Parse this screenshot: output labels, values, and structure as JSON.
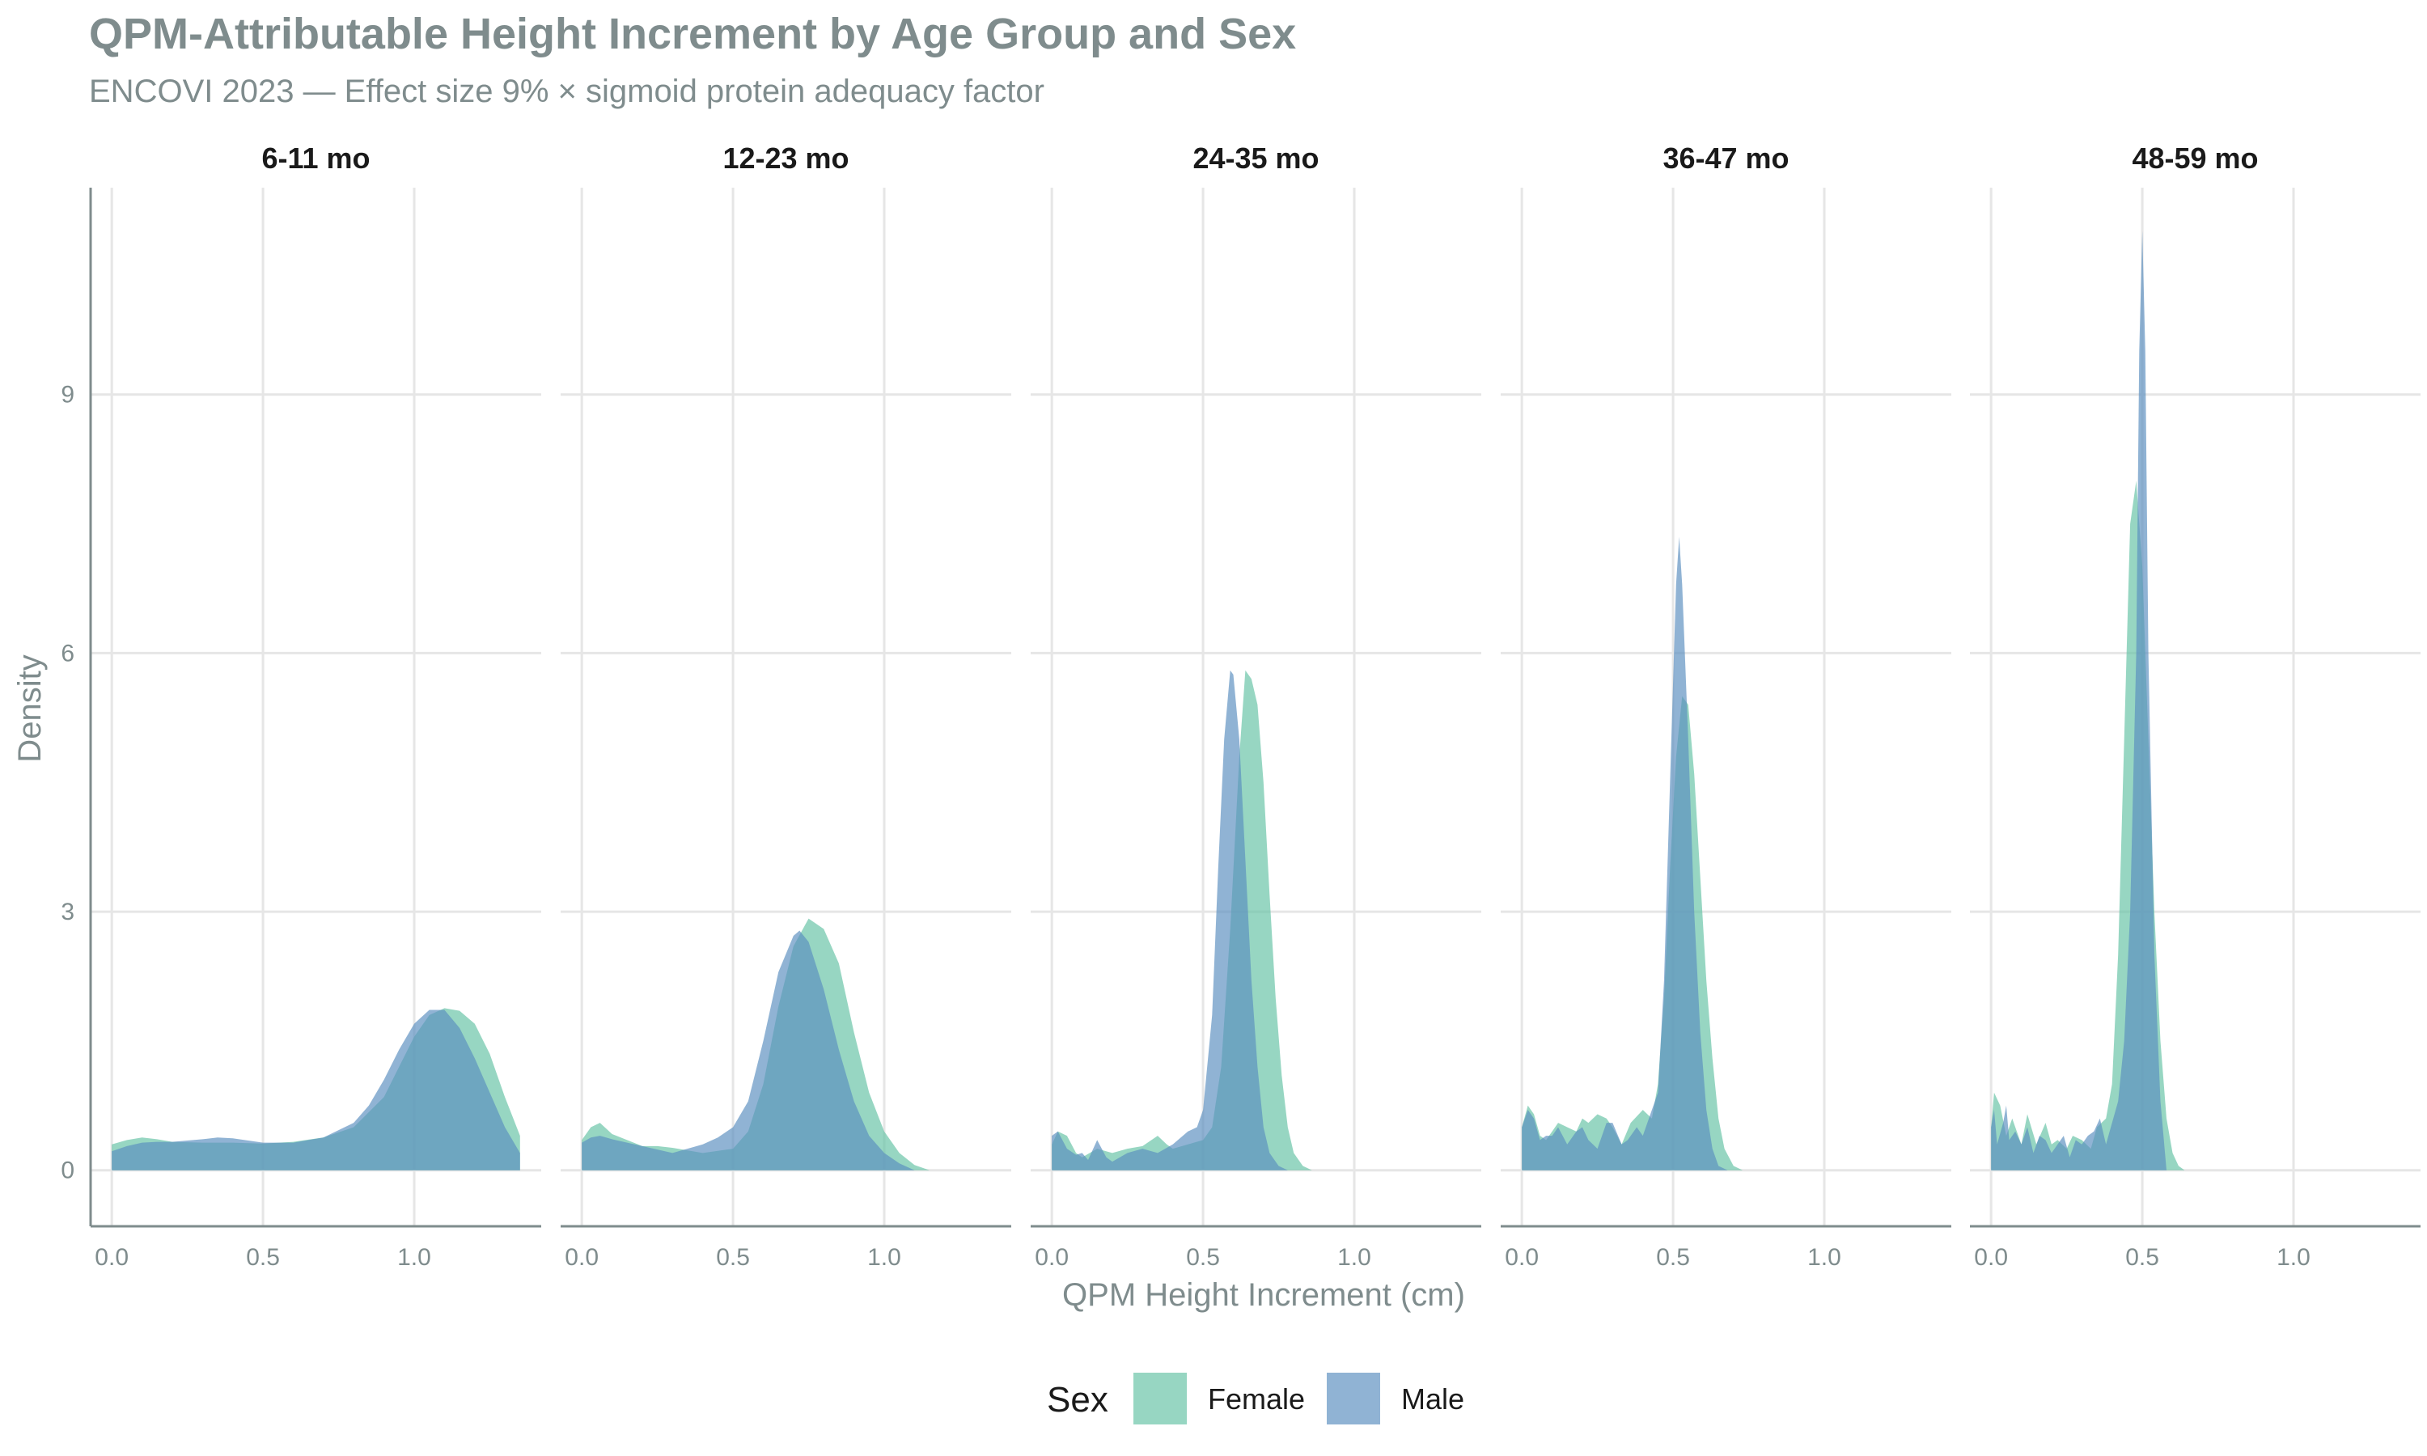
{
  "colors": {
    "Female": "#66c2a5",
    "Male": "#5b8fbf",
    "axis": "#7f8c8d",
    "grid": "#e6e6e6"
  },
  "chart_data": {
    "type": "area",
    "title": "QPM-Attributable Height Increment by Age Group and Sex",
    "subtitle": "ENCOVI 2023 — Effect size 9% × sigmoid protein adequacy factor",
    "xlabel": "QPM Height Increment (cm)",
    "ylabel": "Density",
    "xlim": [
      -0.07,
      1.42
    ],
    "ylim": [
      -0.65,
      11.4
    ],
    "x_ticks": [
      0.0,
      0.5,
      1.0
    ],
    "x_tick_labels": [
      "0.0",
      "0.5",
      "1.0"
    ],
    "y_ticks": [
      0,
      3,
      6,
      9
    ],
    "y_tick_labels": [
      "0",
      "3",
      "6",
      "9"
    ],
    "grid": true,
    "legend": {
      "title": "Sex",
      "position": "bottom",
      "entries": [
        "Female",
        "Male"
      ]
    },
    "panels": [
      {
        "label": "6-11 mo",
        "series": [
          {
            "name": "Female",
            "x": [
              0.0,
              0.05,
              0.1,
              0.15,
              0.2,
              0.3,
              0.4,
              0.5,
              0.6,
              0.7,
              0.8,
              0.9,
              0.95,
              1.0,
              1.05,
              1.1,
              1.15,
              1.2,
              1.25,
              1.3,
              1.35
            ],
            "y": [
              0.3,
              0.35,
              0.38,
              0.36,
              0.33,
              0.32,
              0.32,
              0.31,
              0.33,
              0.38,
              0.5,
              0.85,
              1.2,
              1.55,
              1.8,
              1.88,
              1.85,
              1.7,
              1.35,
              0.85,
              0.4
            ]
          },
          {
            "name": "Male",
            "x": [
              0.0,
              0.05,
              0.1,
              0.15,
              0.2,
              0.3,
              0.35,
              0.4,
              0.5,
              0.6,
              0.7,
              0.8,
              0.85,
              0.9,
              0.95,
              1.0,
              1.05,
              1.1,
              1.15,
              1.2,
              1.25,
              1.3,
              1.35
            ],
            "y": [
              0.22,
              0.28,
              0.32,
              0.33,
              0.33,
              0.36,
              0.38,
              0.37,
              0.32,
              0.32,
              0.38,
              0.55,
              0.75,
              1.05,
              1.4,
              1.7,
              1.86,
              1.86,
              1.65,
              1.3,
              0.9,
              0.5,
              0.2
            ]
          }
        ]
      },
      {
        "label": "12-23 mo",
        "series": [
          {
            "name": "Female",
            "x": [
              0.0,
              0.03,
              0.06,
              0.1,
              0.15,
              0.2,
              0.25,
              0.3,
              0.4,
              0.5,
              0.55,
              0.6,
              0.65,
              0.7,
              0.75,
              0.8,
              0.85,
              0.9,
              0.95,
              1.0,
              1.05,
              1.1,
              1.15
            ],
            "y": [
              0.35,
              0.5,
              0.55,
              0.42,
              0.35,
              0.28,
              0.28,
              0.26,
              0.2,
              0.25,
              0.45,
              1.0,
              1.9,
              2.6,
              2.92,
              2.8,
              2.4,
              1.6,
              0.9,
              0.45,
              0.2,
              0.06,
              0.0
            ]
          },
          {
            "name": "Male",
            "x": [
              0.0,
              0.03,
              0.06,
              0.1,
              0.15,
              0.2,
              0.3,
              0.4,
              0.45,
              0.5,
              0.55,
              0.6,
              0.65,
              0.7,
              0.72,
              0.75,
              0.8,
              0.85,
              0.9,
              0.95,
              1.0,
              1.05,
              1.1
            ],
            "y": [
              0.32,
              0.38,
              0.4,
              0.36,
              0.32,
              0.28,
              0.2,
              0.3,
              0.38,
              0.5,
              0.8,
              1.5,
              2.3,
              2.72,
              2.78,
              2.65,
              2.1,
              1.4,
              0.8,
              0.4,
              0.2,
              0.08,
              0.0
            ]
          }
        ]
      },
      {
        "label": "24-35 mo",
        "series": [
          {
            "name": "Female",
            "x": [
              0.0,
              0.02,
              0.05,
              0.08,
              0.1,
              0.15,
              0.2,
              0.25,
              0.3,
              0.35,
              0.38,
              0.4,
              0.45,
              0.5,
              0.53,
              0.56,
              0.59,
              0.62,
              0.64,
              0.66,
              0.68,
              0.7,
              0.72,
              0.74,
              0.76,
              0.78,
              0.8,
              0.83,
              0.86
            ],
            "y": [
              0.3,
              0.45,
              0.4,
              0.2,
              0.15,
              0.25,
              0.2,
              0.25,
              0.28,
              0.4,
              0.3,
              0.25,
              0.3,
              0.35,
              0.5,
              1.2,
              2.8,
              4.8,
              5.8,
              5.7,
              5.4,
              4.5,
              3.2,
              2.0,
              1.1,
              0.5,
              0.2,
              0.05,
              0.0
            ]
          },
          {
            "name": "Male",
            "x": [
              0.0,
              0.02,
              0.05,
              0.08,
              0.1,
              0.12,
              0.15,
              0.18,
              0.2,
              0.25,
              0.3,
              0.35,
              0.4,
              0.45,
              0.48,
              0.5,
              0.53,
              0.55,
              0.57,
              0.59,
              0.6,
              0.62,
              0.64,
              0.66,
              0.68,
              0.7,
              0.72,
              0.75,
              0.78
            ],
            "y": [
              0.4,
              0.45,
              0.25,
              0.18,
              0.2,
              0.12,
              0.35,
              0.15,
              0.1,
              0.2,
              0.25,
              0.2,
              0.3,
              0.45,
              0.5,
              0.7,
              1.8,
              3.5,
              5.0,
              5.8,
              5.75,
              5.0,
              3.6,
              2.2,
              1.2,
              0.5,
              0.2,
              0.05,
              0.0
            ]
          }
        ]
      },
      {
        "label": "36-47 mo",
        "series": [
          {
            "name": "Female",
            "x": [
              0.0,
              0.02,
              0.04,
              0.06,
              0.08,
              0.1,
              0.12,
              0.15,
              0.18,
              0.2,
              0.22,
              0.25,
              0.28,
              0.3,
              0.33,
              0.36,
              0.4,
              0.43,
              0.45,
              0.47,
              0.49,
              0.51,
              0.53,
              0.55,
              0.57,
              0.59,
              0.61,
              0.63,
              0.65,
              0.67,
              0.7,
              0.73
            ],
            "y": [
              0.5,
              0.75,
              0.65,
              0.4,
              0.35,
              0.45,
              0.55,
              0.5,
              0.45,
              0.6,
              0.55,
              0.65,
              0.6,
              0.5,
              0.3,
              0.55,
              0.7,
              0.6,
              1.0,
              2.0,
              3.5,
              4.8,
              5.5,
              5.4,
              4.6,
              3.4,
              2.2,
              1.3,
              0.6,
              0.25,
              0.05,
              0.0
            ]
          },
          {
            "name": "Male",
            "x": [
              0.0,
              0.02,
              0.04,
              0.06,
              0.08,
              0.1,
              0.12,
              0.15,
              0.18,
              0.2,
              0.22,
              0.25,
              0.28,
              0.3,
              0.33,
              0.35,
              0.38,
              0.4,
              0.43,
              0.45,
              0.47,
              0.49,
              0.51,
              0.52,
              0.53,
              0.55,
              0.57,
              0.59,
              0.61,
              0.63,
              0.65,
              0.68
            ],
            "y": [
              0.5,
              0.7,
              0.6,
              0.35,
              0.4,
              0.4,
              0.5,
              0.3,
              0.45,
              0.5,
              0.35,
              0.25,
              0.55,
              0.55,
              0.3,
              0.35,
              0.5,
              0.4,
              0.7,
              0.9,
              2.2,
              4.5,
              6.8,
              7.35,
              6.8,
              5.0,
              3.0,
              1.6,
              0.7,
              0.25,
              0.05,
              0.0
            ]
          }
        ]
      },
      {
        "label": "48-59 mo",
        "series": [
          {
            "name": "Female",
            "x": [
              0.0,
              0.01,
              0.03,
              0.05,
              0.07,
              0.1,
              0.12,
              0.15,
              0.18,
              0.2,
              0.22,
              0.25,
              0.27,
              0.3,
              0.33,
              0.35,
              0.38,
              0.4,
              0.42,
              0.44,
              0.46,
              0.48,
              0.5,
              0.52,
              0.54,
              0.56,
              0.58,
              0.6,
              0.62,
              0.64
            ],
            "y": [
              0.5,
              0.9,
              0.75,
              0.4,
              0.6,
              0.3,
              0.65,
              0.3,
              0.55,
              0.3,
              0.35,
              0.25,
              0.4,
              0.35,
              0.25,
              0.5,
              0.6,
              1.0,
              2.5,
              5.0,
              7.5,
              8.0,
              7.0,
              5.0,
              3.0,
              1.5,
              0.6,
              0.2,
              0.05,
              0.0
            ]
          },
          {
            "name": "Male",
            "x": [
              0.0,
              0.01,
              0.02,
              0.04,
              0.05,
              0.06,
              0.08,
              0.1,
              0.12,
              0.14,
              0.16,
              0.18,
              0.2,
              0.22,
              0.24,
              0.26,
              0.28,
              0.3,
              0.32,
              0.34,
              0.36,
              0.38,
              0.4,
              0.42,
              0.44,
              0.46,
              0.48,
              0.49,
              0.5,
              0.51,
              0.52,
              0.54,
              0.56,
              0.58
            ],
            "y": [
              0.5,
              0.7,
              0.3,
              0.55,
              0.75,
              0.35,
              0.45,
              0.3,
              0.5,
              0.2,
              0.4,
              0.35,
              0.2,
              0.3,
              0.4,
              0.15,
              0.35,
              0.3,
              0.4,
              0.45,
              0.6,
              0.3,
              0.55,
              0.8,
              1.5,
              3.0,
              6.0,
              9.5,
              10.9,
              9.5,
              6.0,
              2.5,
              0.8,
              0.0
            ]
          }
        ]
      }
    ]
  }
}
